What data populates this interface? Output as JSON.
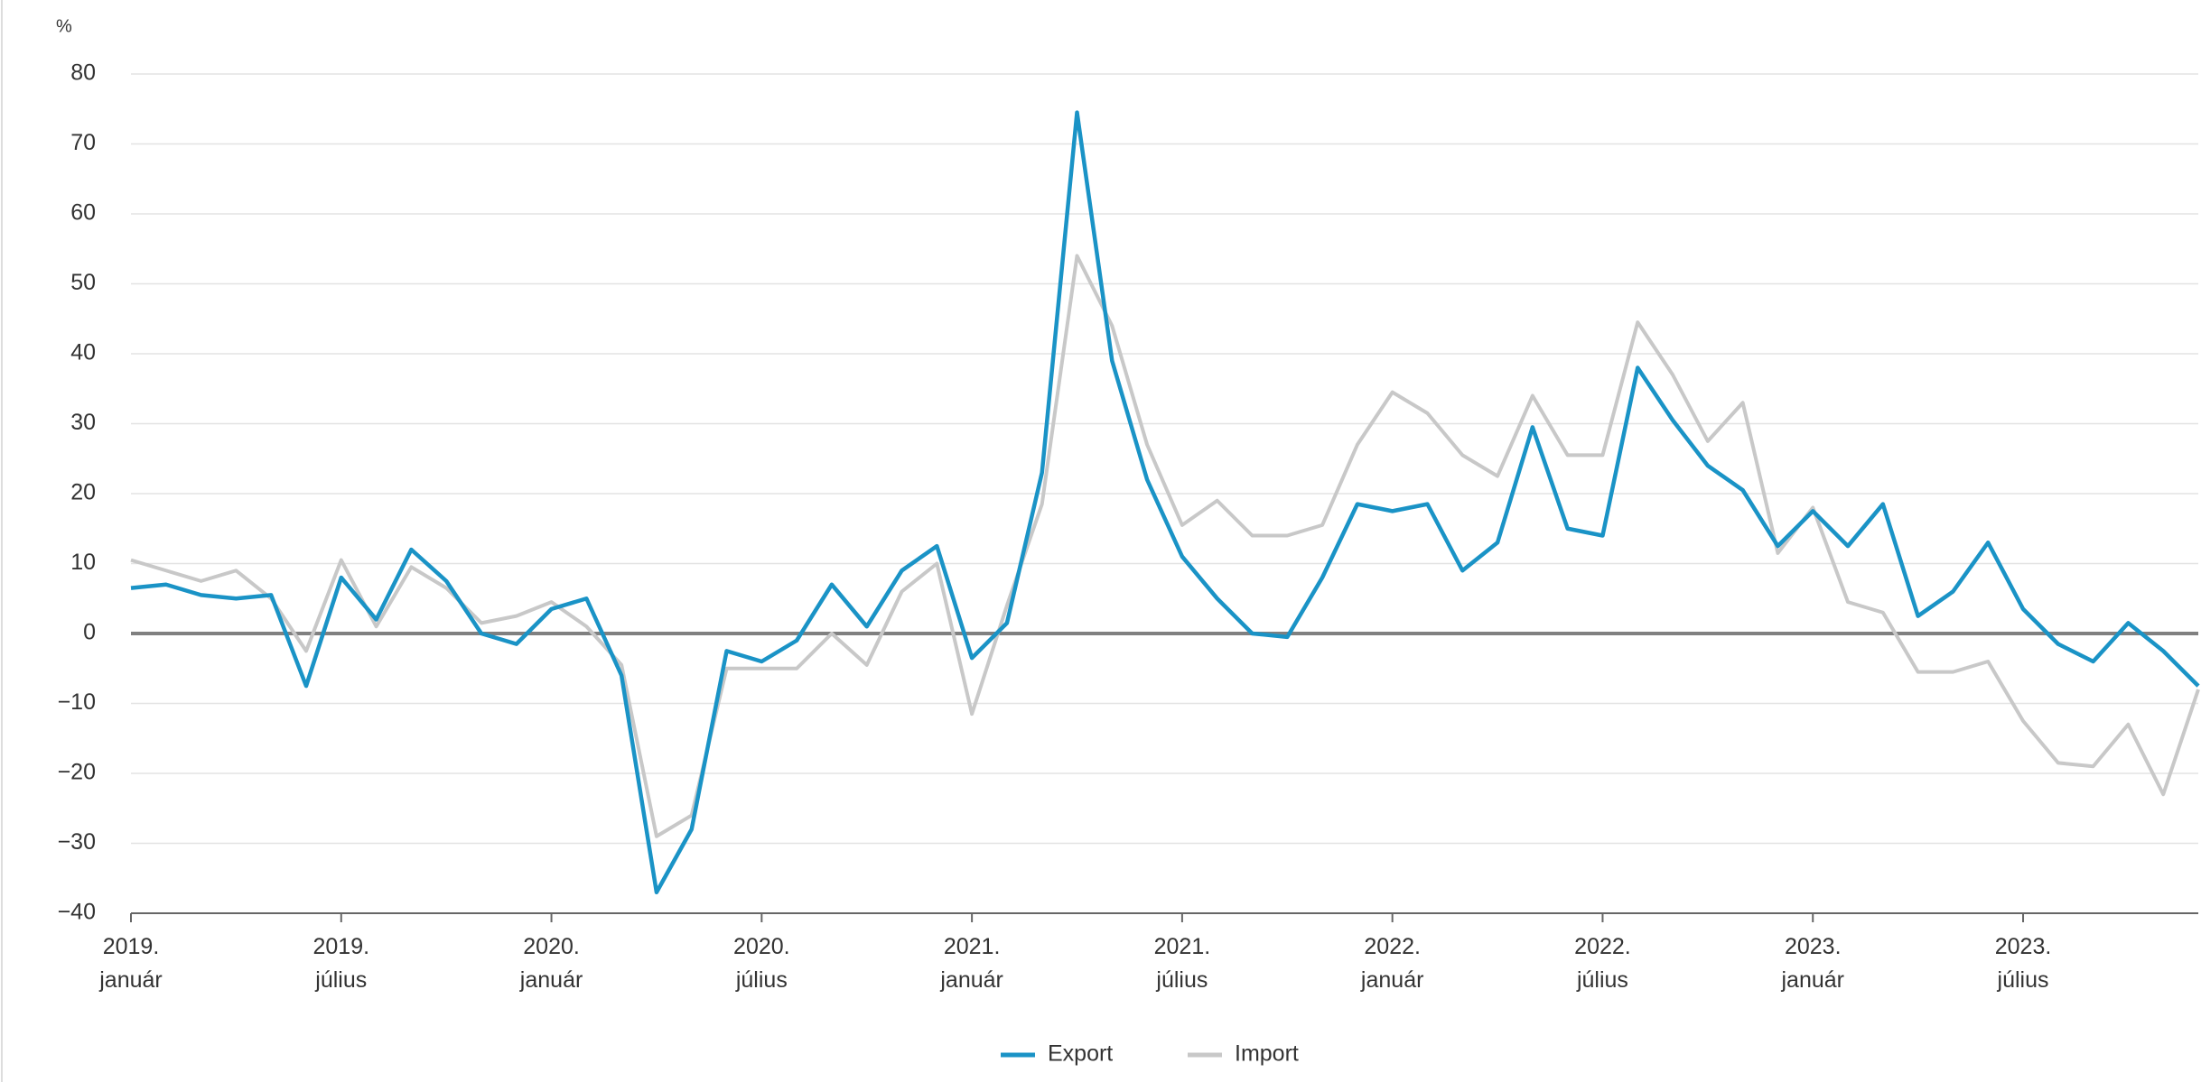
{
  "chart_data": {
    "type": "line",
    "y_axis_label": "%",
    "categories": [
      "2019.\njanuár",
      null,
      null,
      null,
      null,
      null,
      "2019.\njúlius",
      null,
      null,
      null,
      null,
      null,
      "2020.\njanuár",
      null,
      null,
      null,
      null,
      null,
      "2020.\njúlius",
      null,
      null,
      null,
      null,
      null,
      "2021.\njanuár",
      null,
      null,
      null,
      null,
      null,
      "2021.\njúlius",
      null,
      null,
      null,
      null,
      null,
      "2022.\njanuár",
      null,
      null,
      null,
      null,
      null,
      "2022.\njúlius",
      null,
      null,
      null,
      null,
      null,
      "2023.\njanuár",
      null,
      null,
      null,
      null,
      null,
      "2023.\njúlius",
      null,
      null,
      null,
      null,
      null
    ],
    "series": [
      {
        "name": "Export",
        "color": "#1a93c6",
        "values": [
          6.5,
          7,
          5.5,
          5,
          5.5,
          -7.5,
          8,
          2,
          12,
          7.5,
          0,
          -1.5,
          3.5,
          5,
          -6,
          -37,
          -28,
          -2.5,
          -4,
          -1,
          7,
          1,
          9,
          12.5,
          -3.5,
          1.5,
          23,
          74.5,
          39,
          22,
          11,
          5,
          0,
          -0.5,
          8,
          18.5,
          17.5,
          18.5,
          9,
          13,
          29.5,
          15,
          14,
          38,
          30.5,
          24,
          20.5,
          12.5,
          17.5,
          12.5,
          18.5,
          2.5,
          6,
          13,
          3.5,
          -1.5,
          -4,
          1.5,
          -2.5,
          -7.5
        ]
      },
      {
        "name": "Import",
        "color": "#c8c8c8",
        "values": [
          10.5,
          9,
          7.5,
          9,
          5,
          -2.5,
          10.5,
          1,
          9.5,
          6.5,
          1.5,
          2.5,
          4.5,
          1,
          -4.5,
          -29,
          -26,
          -5,
          -5,
          -5,
          0,
          -4.5,
          6,
          10,
          -11.5,
          4,
          18.5,
          54,
          44,
          27,
          15.5,
          19,
          14,
          14,
          15.5,
          27,
          34.5,
          31.5,
          25.5,
          22.5,
          34,
          25.5,
          25.5,
          44.5,
          37,
          27.5,
          33,
          11.5,
          18,
          4.5,
          3,
          -5.5,
          -5.5,
          -4,
          -12.5,
          -18.5,
          -19,
          -13,
          -23,
          -8
        ]
      }
    ],
    "ylim": [
      -40,
      80
    ],
    "yticks": [
      {
        "value": -40,
        "label": "−40"
      },
      {
        "value": -30,
        "label": "−30"
      },
      {
        "value": -20,
        "label": "−20"
      },
      {
        "value": -10,
        "label": "−10"
      },
      0,
      10,
      20,
      30,
      40,
      50,
      60,
      70,
      80
    ],
    "grid": true,
    "legend": "bottom"
  }
}
